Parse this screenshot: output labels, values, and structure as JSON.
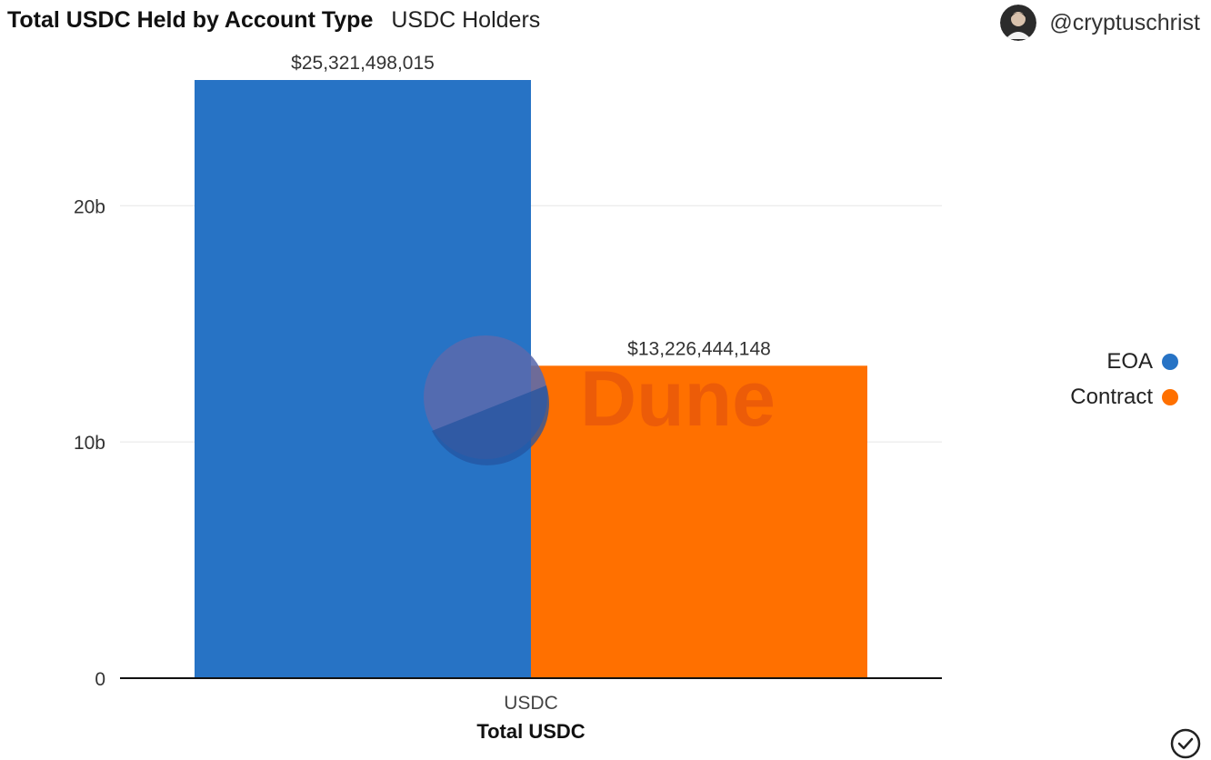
{
  "header": {
    "title": "Total USDC Held by Account Type",
    "subtitle": "USDC Holders"
  },
  "author": {
    "handle": "@cryptuschrist",
    "avatar_icon": "user-avatar"
  },
  "watermark": {
    "text": "Dune"
  },
  "footer": {
    "icon": "check-circle-icon"
  },
  "chart_data": {
    "type": "bar",
    "categories": [
      "USDC"
    ],
    "xlabel": "Total USDC",
    "ylabel": "",
    "ylim": [
      0,
      25321498015
    ],
    "y_ticks": [
      0,
      10000000000,
      20000000000
    ],
    "y_tick_labels": [
      "0",
      "10b",
      "20b"
    ],
    "grid": true,
    "legend_position": "right",
    "series": [
      {
        "name": "EOA",
        "values": [
          25321498015
        ],
        "color": "#2773c5",
        "data_label": "$25,321,498,015"
      },
      {
        "name": "Contract",
        "values": [
          13226444148
        ],
        "color": "#ff7000",
        "data_label": "$13,226,444,148"
      }
    ]
  }
}
